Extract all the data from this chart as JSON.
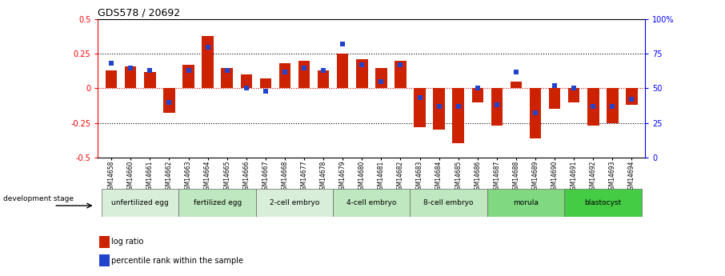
{
  "title": "GDS578 / 20692",
  "samples": [
    "GSM14658",
    "GSM14660",
    "GSM14661",
    "GSM14662",
    "GSM14663",
    "GSM14664",
    "GSM14665",
    "GSM14666",
    "GSM14667",
    "GSM14668",
    "GSM14677",
    "GSM14678",
    "GSM14679",
    "GSM14680",
    "GSM14681",
    "GSM14682",
    "GSM14683",
    "GSM14684",
    "GSM14685",
    "GSM14686",
    "GSM14687",
    "GSM14688",
    "GSM14689",
    "GSM14690",
    "GSM14691",
    "GSM14692",
    "GSM14693",
    "GSM14694"
  ],
  "log_ratio": [
    0.13,
    0.16,
    0.12,
    -0.18,
    0.17,
    0.38,
    0.15,
    0.1,
    0.07,
    0.18,
    0.2,
    0.13,
    0.25,
    0.21,
    0.15,
    0.2,
    -0.28,
    -0.3,
    -0.4,
    -0.1,
    -0.27,
    0.05,
    -0.36,
    -0.15,
    -0.1,
    -0.27,
    -0.25,
    -0.12
  ],
  "percentile_rank": [
    0.68,
    0.65,
    0.63,
    0.4,
    0.63,
    0.8,
    0.63,
    0.5,
    0.48,
    0.62,
    0.65,
    0.63,
    0.82,
    0.67,
    0.55,
    0.67,
    0.43,
    0.37,
    0.37,
    0.5,
    0.38,
    0.62,
    0.32,
    0.52,
    0.5,
    0.37,
    0.37,
    0.42
  ],
  "stages": [
    {
      "label": "unfertilized egg",
      "start": 0,
      "end": 4
    },
    {
      "label": "fertilized egg",
      "start": 4,
      "end": 8
    },
    {
      "label": "2-cell embryo",
      "start": 8,
      "end": 12
    },
    {
      "label": "4-cell embryo",
      "start": 12,
      "end": 16
    },
    {
      "label": "8-cell embryo",
      "start": 16,
      "end": 20
    },
    {
      "label": "morula",
      "start": 20,
      "end": 24
    },
    {
      "label": "blastocyst",
      "start": 24,
      "end": 28
    }
  ],
  "stage_colors": [
    "#d8eed8",
    "#c0e8c0",
    "#d8eed8",
    "#c0e8c0",
    "#c0e8c0",
    "#80d880",
    "#44cc44"
  ],
  "ylim": [
    -0.5,
    0.5
  ],
  "yticks_left": [
    -0.5,
    -0.25,
    0.0,
    0.25,
    0.5
  ],
  "yticks_right": [
    0,
    25,
    50,
    75,
    100
  ],
  "bar_color": "#cc2200",
  "dot_color": "#2244cc",
  "background_color": "#ffffff",
  "dotted_lines": [
    -0.25,
    0.0,
    0.25
  ],
  "zero_line_color": "#cc0000"
}
